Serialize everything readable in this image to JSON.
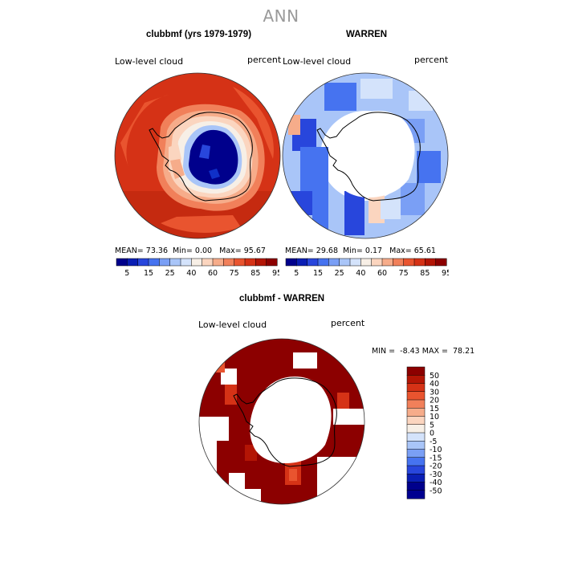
{
  "title": "ANN",
  "panel1": {
    "title": "clubbmf (yrs 1979-1979)",
    "field": "Low-level cloud",
    "units": "percent",
    "mean": "73.36",
    "min": "0.00",
    "max": "95.67"
  },
  "panel2": {
    "title": "WARREN",
    "field": "Low-level cloud",
    "units": "percent",
    "mean": "29.68",
    "min": "0.17",
    "max": "65.61"
  },
  "panel3": {
    "title": "clubbmf - WARREN",
    "field": "Low-level cloud",
    "units": "percent",
    "min": "-8.43",
    "max": "78.21"
  },
  "stat_labels": {
    "mean": "MEAN=",
    "min": "Min=",
    "max": "Max=",
    "min_upper": "MIN =",
    "max_upper": "MAX ="
  },
  "colorbar_top": {
    "labels": [
      "5",
      "15",
      "25",
      "40",
      "60",
      "75",
      "85",
      "95"
    ],
    "colors": [
      "#00008c",
      "#0a1eb4",
      "#2846dc",
      "#4673f0",
      "#7a9ff5",
      "#a9c5f8",
      "#d4e3fb",
      "#f7efe6",
      "#fbd5bf",
      "#f6ac8a",
      "#f1805a",
      "#e9542f",
      "#d53216",
      "#b31505",
      "#8c0000"
    ]
  },
  "colorbar_diff": {
    "labels": [
      "50",
      "40",
      "30",
      "20",
      "15",
      "10",
      "5",
      "0",
      "-5",
      "-10",
      "-15",
      "-20",
      "-30",
      "-40",
      "-50"
    ],
    "colors": [
      "#8c0000",
      "#b31505",
      "#d53216",
      "#e9542f",
      "#f1805a",
      "#f6ac8a",
      "#fbd5bf",
      "#f7efe6",
      "#d4e3fb",
      "#a9c5f8",
      "#7a9ff5",
      "#4673f0",
      "#2846dc",
      "#0a1eb4",
      "#00008c",
      "#000090"
    ]
  }
}
